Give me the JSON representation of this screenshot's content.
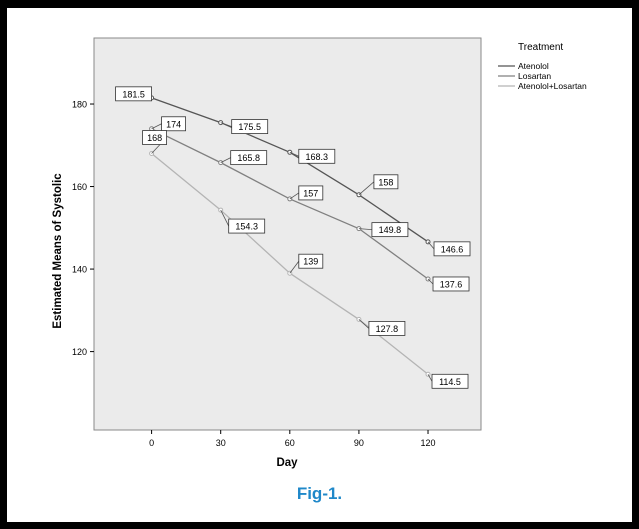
{
  "chart_data": {
    "type": "line",
    "x": [
      0,
      30,
      60,
      90,
      120
    ],
    "x_ticks": [
      "0",
      "30",
      "60",
      "90",
      "120"
    ],
    "y_ticks": [
      "120",
      "140",
      "160",
      "180"
    ],
    "xlabel": "Day",
    "ylabel": "Estimated Means of Systolic",
    "legend_title": "Treatment",
    "legend_position": "right",
    "xlim": [
      -25,
      143
    ],
    "ylim": [
      101,
      196
    ],
    "grid": false,
    "series": [
      {
        "name": "Atenolol",
        "values": [
          181.5,
          175.5,
          168.3,
          158,
          146.6
        ],
        "labels": [
          "181.5",
          "175.5",
          "168.3",
          "158",
          "146.6"
        ],
        "color": "#555555"
      },
      {
        "name": "Losartan",
        "values": [
          174,
          165.8,
          157,
          149.8,
          137.6
        ],
        "labels": [
          "174",
          "165.8",
          "157",
          "149.8",
          "137.6"
        ],
        "color": "#808080"
      },
      {
        "name": "Atenolol+Losartan",
        "values": [
          168,
          154.3,
          139,
          127.8,
          114.5
        ],
        "labels": [
          "168",
          "154.3",
          "139",
          "127.8",
          "114.5"
        ],
        "color": "#b4b4b4"
      }
    ],
    "plot_background": "#ebebeb"
  },
  "caption": "Fig-1."
}
